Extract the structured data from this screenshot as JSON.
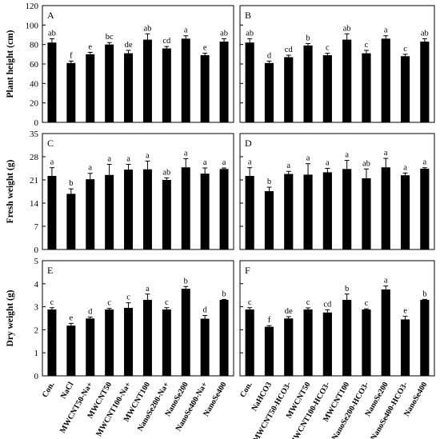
{
  "chart_data": [
    {
      "type": "bar",
      "panel_label": "A",
      "ylabel": "Plant height (cm)",
      "ylim": [
        0,
        120
      ],
      "yticks": [
        0,
        20,
        40,
        60,
        80,
        100,
        120
      ],
      "categories": [
        "Con.",
        "NaCl",
        "MWCNT50-Na+",
        "MWCNT50",
        "MWCNT100-Na+",
        "MWCNT100",
        "NanoSe200-Na+",
        "NanoSe200",
        "NanoSe400-Na+",
        "NanoSe400"
      ],
      "values": [
        82,
        61,
        70,
        80,
        71,
        85,
        76,
        86,
        69,
        83
      ],
      "errors": [
        4,
        2,
        2,
        2,
        3,
        6,
        2,
        3,
        2,
        3
      ],
      "letters": [
        "ab",
        "f",
        "e",
        "bc",
        "de",
        "ab",
        "cd",
        "a",
        "e",
        "ab"
      ]
    },
    {
      "type": "bar",
      "panel_label": "B",
      "ylabel": "",
      "ylim": [
        0,
        120
      ],
      "yticks": [
        0,
        20,
        40,
        60,
        80,
        100,
        120
      ],
      "categories": [
        "Con.",
        "NaHCO3",
        "MWCNT50-HCO3-",
        "MWCNT50",
        "MWCNT100-HCO3-",
        "MWCNT100",
        "NanoSe200-HCO3-",
        "NanoSe200",
        "NanoSe400-HCO3-",
        "NanoSe400"
      ],
      "values": [
        82,
        61,
        67,
        79,
        69,
        85,
        71,
        86,
        68,
        83
      ],
      "errors": [
        4,
        2,
        2,
        2,
        2,
        6,
        3,
        3,
        2,
        3
      ],
      "letters": [
        "ab",
        "d",
        "cd",
        "b",
        "c",
        "ab",
        "c",
        "a",
        "c",
        "ab"
      ]
    },
    {
      "type": "bar",
      "panel_label": "C",
      "ylabel": "Fresh weight (g)",
      "ylim": [
        0,
        35
      ],
      "yticks": [
        0,
        7,
        14,
        21,
        28,
        35
      ],
      "categories": [
        "Con.",
        "NaCl",
        "MWCNT50-Na+",
        "MWCNT50",
        "MWCNT100-Na+",
        "MWCNT100",
        "NanoSe200-Na+",
        "NanoSe200",
        "NanoSe400-Na+",
        "NanoSe400"
      ],
      "values": [
        22.2,
        16.8,
        21.2,
        22.5,
        24.1,
        24.2,
        21.0,
        24.8,
        22.9,
        24.3
      ],
      "errors": [
        2.5,
        1.5,
        1.8,
        3.2,
        1.6,
        2.5,
        0.6,
        2.6,
        1.7,
        0.3
      ],
      "letters": [
        "a",
        "b",
        "a",
        "a",
        "a",
        "a",
        "ab",
        "a",
        "a",
        "a"
      ]
    },
    {
      "type": "bar",
      "panel_label": "D",
      "ylabel": "",
      "ylim": [
        0,
        35
      ],
      "yticks": [
        0,
        7,
        14,
        21,
        28,
        35
      ],
      "categories": [
        "Con.",
        "NaHCO3",
        "MWCNT50-HCO3-",
        "MWCNT50",
        "MWCNT100-HCO3-",
        "MWCNT100",
        "NanoSe200-HCO3-",
        "NanoSe200",
        "NanoSe400-HCO3-",
        "NanoSe400"
      ],
      "values": [
        22.2,
        17.6,
        22.8,
        22.6,
        23.3,
        24.3,
        21.5,
        24.8,
        22.4,
        24.4
      ],
      "errors": [
        2.5,
        1.2,
        0.8,
        3.3,
        1.2,
        2.6,
        2.8,
        2.7,
        0.7,
        0.3
      ],
      "letters": [
        "a",
        "b",
        "a",
        "a",
        "a",
        "a",
        "ab",
        "a",
        "a",
        "a"
      ]
    },
    {
      "type": "bar",
      "panel_label": "E",
      "ylabel": "Dry weight (g)",
      "ylim": [
        0,
        5
      ],
      "yticks": [
        0,
        1,
        2,
        3,
        4,
        5
      ],
      "categories": [
        "Con.",
        "NaCl",
        "MWCNT50-Na+",
        "MWCNT50",
        "MWCNT100-Na+",
        "MWCNT100",
        "NanoSe200-Na+",
        "NanoSe200",
        "NanoSe400-Na+",
        "NanoSe400"
      ],
      "values": [
        2.88,
        2.18,
        2.49,
        2.88,
        2.95,
        3.3,
        2.88,
        3.78,
        2.48,
        3.3
      ],
      "errors": [
        0.08,
        0.1,
        0.06,
        0.05,
        0.22,
        0.25,
        0.08,
        0.1,
        0.14,
        0.02
      ],
      "letters": [
        "c",
        "e",
        "d",
        "c",
        "c",
        "a",
        "c",
        "b",
        "d",
        "b"
      ]
    },
    {
      "type": "bar",
      "panel_label": "F",
      "ylabel": "",
      "ylim": [
        0,
        5
      ],
      "yticks": [
        0,
        1,
        2,
        3,
        4,
        5
      ],
      "categories": [
        "Con.",
        "NaHCO3",
        "MWCNT50-HCO3-",
        "MWCNT50",
        "MWCNT100-HCO3-",
        "MWCNT100",
        "NanoSe200-HCO3-",
        "NanoSe200",
        "NanoSe400-HCO3-",
        "NanoSe400"
      ],
      "values": [
        2.88,
        2.13,
        2.49,
        2.88,
        2.75,
        3.3,
        2.88,
        3.75,
        2.45,
        3.3
      ],
      "errors": [
        0.08,
        0.05,
        0.08,
        0.07,
        0.12,
        0.25,
        0.03,
        0.15,
        0.14,
        0.02
      ],
      "letters": [
        "c",
        "f",
        "de",
        "c",
        "cd",
        "b",
        "c",
        "a",
        "e",
        "b"
      ]
    }
  ]
}
